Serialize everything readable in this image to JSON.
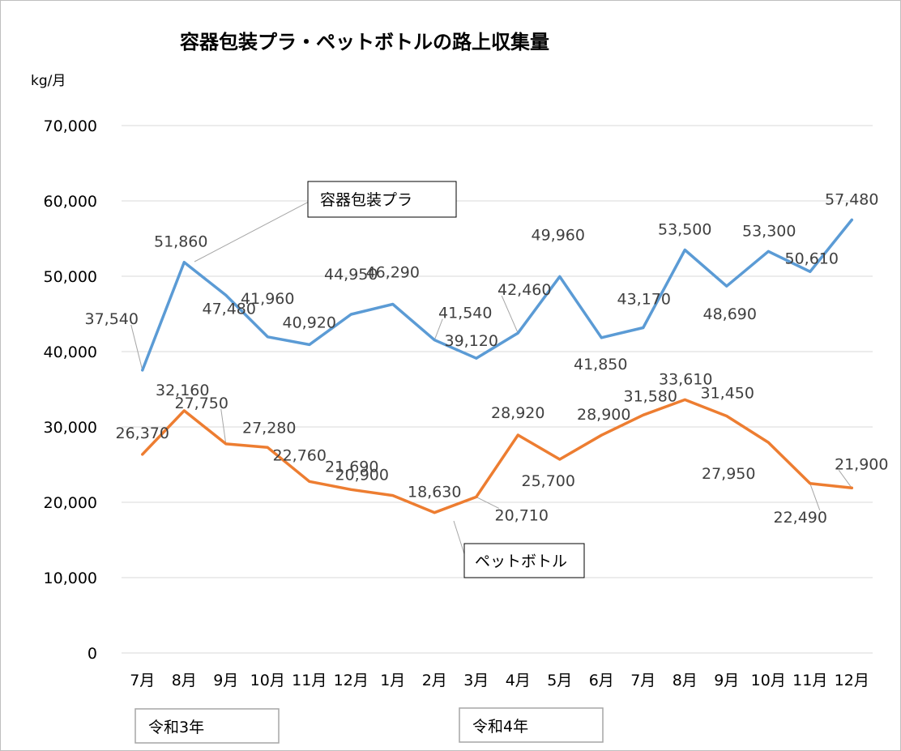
{
  "chart_data": {
    "type": "line",
    "title": "容器包装プラ・ペットボトルの路上収集量",
    "unit_label": "kg/月",
    "ylim": [
      0,
      70000
    ],
    "yticks": [
      "0",
      "10,000",
      "20,000",
      "30,000",
      "40,000",
      "50,000",
      "60,000",
      "70,000"
    ],
    "grid": true,
    "categories": [
      "7月",
      "8月",
      "9月",
      "10月",
      "11月",
      "12月",
      "1月",
      "2月",
      "3月",
      "4月",
      "5月",
      "6月",
      "7月",
      "8月",
      "9月",
      "10月",
      "11月",
      "12月"
    ],
    "series": [
      {
        "name": "容器包装プラ",
        "color": "#5b9bd5",
        "values": [
          37540,
          51860,
          47480,
          41960,
          40920,
          44950,
          46290,
          41540,
          39120,
          42460,
          49960,
          41850,
          43170,
          53500,
          48690,
          53300,
          50610,
          57480
        ],
        "labels": [
          "37,540",
          "51,860",
          "47,480",
          "41,960",
          "40,920",
          "44,950",
          "46,290",
          "41,540",
          "39,120",
          "42,460",
          "49,960",
          "41,850",
          "43,170",
          "53,500",
          "48,690",
          "53,300",
          "50,610",
          "57,480"
        ]
      },
      {
        "name": "ペットボトル",
        "color": "#ed7d31",
        "values": [
          26370,
          32160,
          27750,
          27280,
          22760,
          21690,
          20900,
          18630,
          20710,
          28920,
          25700,
          28900,
          31580,
          33610,
          31450,
          27950,
          22490,
          21900
        ],
        "labels": [
          "26,370",
          "32,160",
          "27,750",
          "27,280",
          "22,760",
          "21,690",
          "20,900",
          "18,630",
          "20,710",
          "28,920",
          "25,700",
          "28,900",
          "31,580",
          "33,610",
          "31,450",
          "27,950",
          "22,490",
          "21,900"
        ]
      }
    ],
    "era_labels": [
      "令和3年",
      "令和4年"
    ]
  }
}
